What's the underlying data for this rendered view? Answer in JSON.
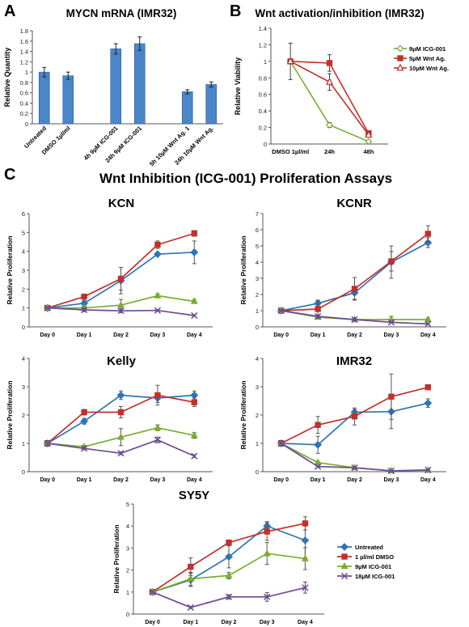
{
  "panel_letters": {
    "a": "A",
    "b": "B",
    "c": "C"
  },
  "section_c_title": "Wnt Inhibition (ICG-001) Proliferation Assays",
  "colors": {
    "bar": "#4a86c8",
    "untreated": "#2e75b6",
    "dmso": "#c0312b",
    "icg9": "#7aad2e",
    "icg18": "#6f4a98",
    "b_icg": "#7aad2e",
    "b_wnt5": "#c0312b",
    "b_wnt10": "#c0312b"
  },
  "chart_data": [
    {
      "id": "A",
      "type": "bar",
      "title": "MYCN mRNA (IMR32)",
      "ylabel": "Relative Quantity",
      "xlabel": "",
      "ylim": [
        0,
        1.8
      ],
      "yticks": [
        "0",
        "0.2",
        "0.4",
        "0.6",
        "0.8",
        "1",
        "1.2",
        "1.4",
        "1.6",
        "1.8"
      ],
      "categories": [
        "Untreated",
        "DMSO 1µl/ml",
        "4h 9µM ICG-001",
        "24h 9µM ICG-001",
        "5h 10µM Wnt Ag. 1",
        "24h 10µM Wnt Ag."
      ],
      "values": [
        1.0,
        0.93,
        1.45,
        1.55,
        0.62,
        0.76
      ],
      "errors": [
        0.09,
        0.07,
        0.1,
        0.13,
        0.04,
        0.05
      ],
      "slots": [
        0,
        1,
        3,
        4,
        6,
        7
      ]
    },
    {
      "id": "B",
      "type": "line",
      "title": "Wnt activation/inhibition (IMR32)",
      "ylabel": "Relative Viability",
      "xlabel": "",
      "ylim": [
        0,
        1.4
      ],
      "yticks": [
        "0",
        "0.2",
        "0.4",
        "0.6",
        "0.8",
        "1",
        "1.2",
        "1.4"
      ],
      "categories": [
        "DMSO 1µl/ml",
        "24h",
        "48h"
      ],
      "legend": "right",
      "series": [
        {
          "name": "9µM ICG-001",
          "values": [
            1.0,
            0.23,
            0.03
          ],
          "errors": [
            0.22,
            0.03,
            0.01
          ],
          "color_key": "b_icg",
          "marker": "diamond-open"
        },
        {
          "name": "5µM Wnt Ag.",
          "values": [
            1.0,
            0.98,
            0.13
          ],
          "errors": [
            0,
            0.1,
            0.02
          ],
          "color_key": "b_wnt5",
          "marker": "square"
        },
        {
          "name": "10µM Wnt Ag.",
          "values": [
            1.0,
            0.75,
            0.11
          ],
          "errors": [
            0,
            0.1,
            0.02
          ],
          "color_key": "b_wnt10",
          "marker": "triangle-open"
        }
      ]
    },
    {
      "id": "KCN",
      "type": "line",
      "title": "KCN",
      "ylabel": "Relative Proliferation",
      "ylim": [
        0,
        6
      ],
      "yticks": [
        "0",
        "1",
        "2",
        "3",
        "4",
        "5",
        "6"
      ],
      "categories": [
        "Day 0",
        "Day 1",
        "Day 2",
        "Day 3",
        "Day 4"
      ],
      "series": [
        {
          "name": "Untreated",
          "values": [
            1,
            1.25,
            2.45,
            3.85,
            3.95
          ],
          "errors": [
            0.05,
            0.15,
            0.7,
            0.05,
            0.6
          ]
        },
        {
          "name": "1 µl/ml DMSO",
          "values": [
            1,
            1.6,
            2.55,
            4.35,
            4.95
          ],
          "errors": [
            0.05,
            0.1,
            0.6,
            0.2,
            0.15
          ]
        },
        {
          "name": "9µM ICG-001",
          "values": [
            1,
            1.0,
            1.15,
            1.65,
            1.35
          ],
          "errors": [
            0.05,
            0.1,
            0.3,
            0.1,
            0.1
          ]
        },
        {
          "name": "18µM ICG-001",
          "values": [
            1,
            0.9,
            0.85,
            0.87,
            0.6
          ],
          "errors": [
            0.05,
            0.1,
            0.1,
            0.05,
            0.05
          ]
        }
      ]
    },
    {
      "id": "KCNR",
      "type": "line",
      "title": "KCNR",
      "ylabel": "Relative Proliferation",
      "ylim": [
        0,
        7
      ],
      "yticks": [
        "0",
        "1",
        "2",
        "3",
        "4",
        "5",
        "6",
        "7"
      ],
      "categories": [
        "Day 0",
        "Day 1",
        "Day 2",
        "Day 3",
        "Day 4"
      ],
      "series": [
        {
          "name": "Untreated",
          "values": [
            1,
            1.45,
            2.1,
            4.0,
            5.2
          ],
          "errors": [
            0.05,
            0.2,
            0.4,
            1.0,
            0.3
          ]
        },
        {
          "name": "1 µl/ml DMSO",
          "values": [
            1,
            1.1,
            2.35,
            4.05,
            5.75
          ],
          "errors": [
            0.05,
            0.5,
            0.7,
            0.6,
            0.5
          ]
        },
        {
          "name": "9µM ICG-001",
          "values": [
            1,
            0.6,
            0.45,
            0.45,
            0.45
          ],
          "errors": [
            0.05,
            0.1,
            0.1,
            0.2,
            0.1
          ]
        },
        {
          "name": "18µM ICG-001",
          "values": [
            1,
            0.65,
            0.45,
            0.28,
            0.18
          ],
          "errors": [
            0.05,
            0.1,
            0.1,
            0.05,
            0.05
          ]
        }
      ]
    },
    {
      "id": "Kelly",
      "type": "line",
      "title": "Kelly",
      "ylabel": "Relative Proliferation",
      "ylim": [
        0,
        4
      ],
      "yticks": [
        "0",
        "1",
        "2",
        "3",
        "4"
      ],
      "categories": [
        "Day 0",
        "Day 1",
        "Day 2",
        "Day 3",
        "Day 4"
      ],
      "series": [
        {
          "name": "Untreated",
          "values": [
            1,
            1.78,
            2.7,
            2.6,
            2.7
          ],
          "errors": [
            0.1,
            0.1,
            0.15,
            0.15,
            0.15
          ]
        },
        {
          "name": "1 µl/ml DMSO",
          "values": [
            1,
            2.1,
            2.1,
            2.7,
            2.45
          ],
          "errors": [
            0.1,
            0.1,
            0.2,
            0.35,
            0.15
          ]
        },
        {
          "name": "9µM ICG-001",
          "values": [
            1,
            0.88,
            1.22,
            1.55,
            1.28
          ],
          "errors": [
            0.1,
            0.05,
            0.3,
            0.1,
            0.1
          ]
        },
        {
          "name": "18µM ICG-001",
          "values": [
            1,
            0.82,
            0.65,
            1.12,
            0.55
          ],
          "errors": [
            0.1,
            0.05,
            0.05,
            0.1,
            0.05
          ]
        }
      ]
    },
    {
      "id": "IMR32",
      "type": "line",
      "title": "IMR32",
      "ylabel": "Relative Proliferation",
      "ylim": [
        0,
        4
      ],
      "yticks": [
        "0",
        "1",
        "2",
        "3",
        "4"
      ],
      "categories": [
        "Day 0",
        "Day 1",
        "Day 2",
        "Day 3",
        "Day 4"
      ],
      "series": [
        {
          "name": "Untreated",
          "values": [
            1,
            0.95,
            2.1,
            2.12,
            2.42
          ],
          "errors": [
            0.1,
            0.3,
            0.1,
            0.6,
            0.15
          ]
        },
        {
          "name": "1 µl/ml DMSO",
          "values": [
            1,
            1.65,
            1.95,
            2.65,
            2.98
          ],
          "errors": [
            0.1,
            0.3,
            0.3,
            0.8,
            0.05
          ]
        },
        {
          "name": "9µM ICG-001",
          "values": [
            1,
            0.32,
            0.14,
            0.03,
            0.05
          ],
          "errors": [
            0.1,
            0.05,
            0.03,
            0.01,
            0.01
          ]
        },
        {
          "name": "18µM ICG-001",
          "values": [
            1,
            0.18,
            0.14,
            0.03,
            0.06
          ],
          "errors": [
            0.1,
            0.03,
            0.03,
            0.01,
            0.01
          ]
        }
      ]
    },
    {
      "id": "SY5Y",
      "type": "line",
      "title": "SY5Y",
      "ylabel": "Relative Proliferation",
      "ylim": [
        0,
        5
      ],
      "yticks": [
        "0",
        "1",
        "2",
        "3",
        "4",
        "5"
      ],
      "categories": [
        "Day 0",
        "Day 1",
        "Day 2",
        "Day 3",
        "Day 4"
      ],
      "legend": "right",
      "series": [
        {
          "name": "Untreated",
          "values": [
            1,
            1.55,
            2.6,
            4.0,
            3.35
          ],
          "errors": [
            0.05,
            0.3,
            0.5,
            0.2,
            0.8
          ]
        },
        {
          "name": "1 µl/ml DMSO",
          "values": [
            1,
            2.15,
            3.25,
            3.75,
            4.12
          ],
          "errors": [
            0.05,
            0.4,
            0.1,
            0.4,
            0.3
          ]
        },
        {
          "name": "9µM ICG-001",
          "values": [
            1,
            1.6,
            1.75,
            2.75,
            2.52
          ],
          "errors": [
            0.05,
            0.3,
            0.15,
            0.5,
            0.5
          ]
        },
        {
          "name": "18µM ICG-001",
          "values": [
            1,
            0.3,
            0.78,
            0.78,
            1.2
          ],
          "errors": [
            0.05,
            0.05,
            0.1,
            0.2,
            0.25
          ]
        }
      ]
    }
  ]
}
